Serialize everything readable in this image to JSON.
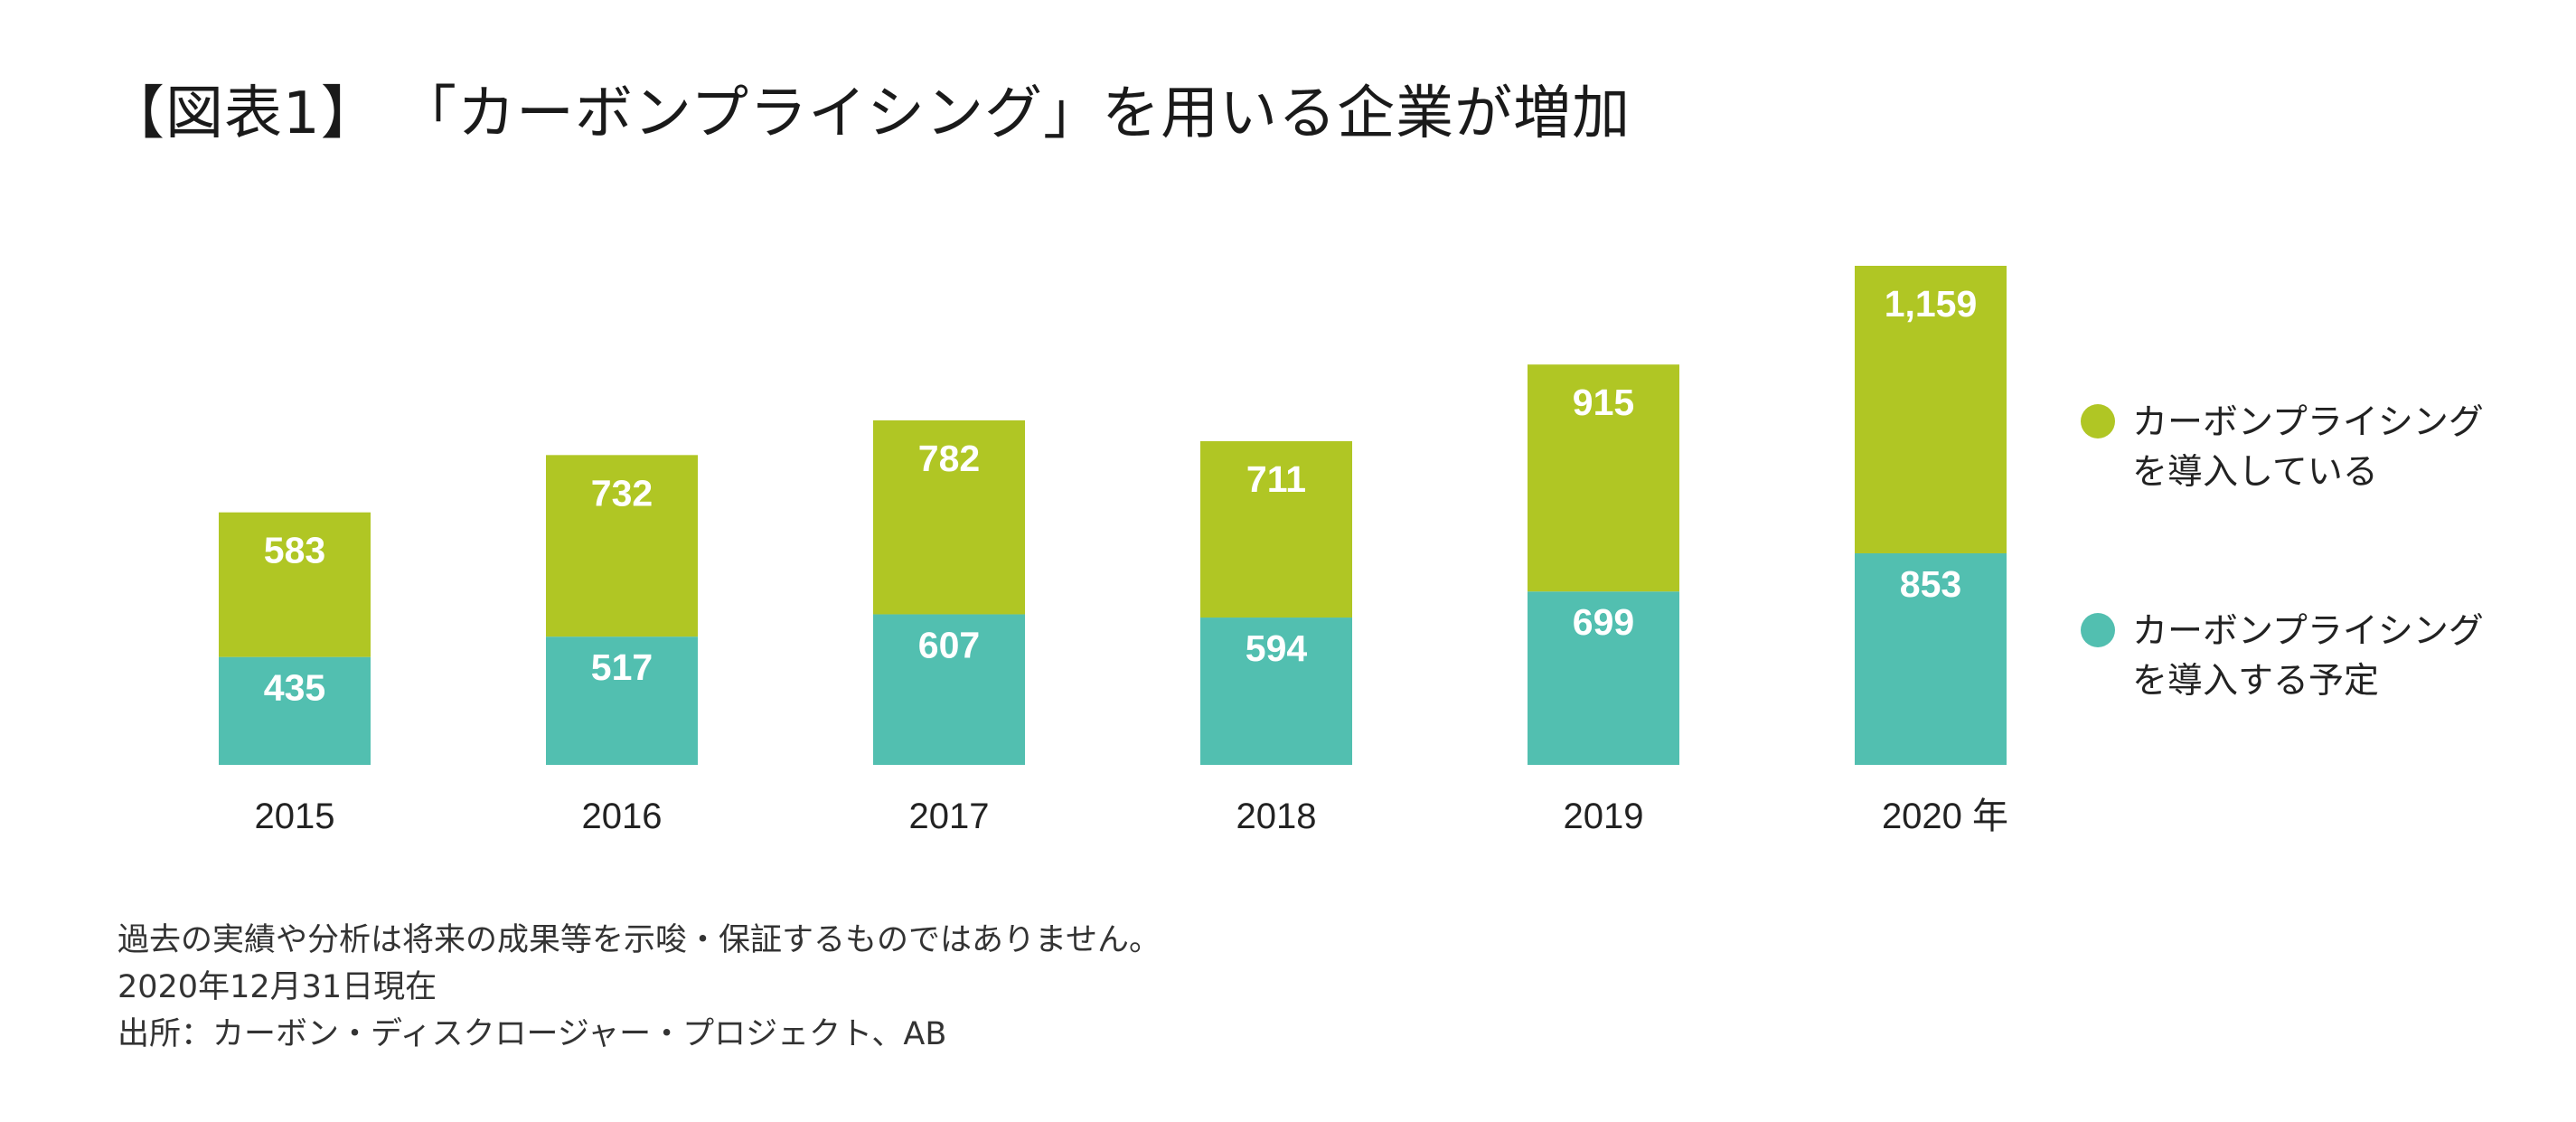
{
  "title": "【図表1】 「カーボンプライシング」を用いる企業が増加",
  "colors": {
    "implemented": "#b0c624",
    "planned": "#52bfb0",
    "value_label": "#ffffff",
    "text": "#222222"
  },
  "chart_data": {
    "type": "bar",
    "stacked": true,
    "title": "「カーボンプライシング」を用いる企業が増加",
    "categories": [
      "2015",
      "2016",
      "2017",
      "2018",
      "2019",
      "2020"
    ],
    "category_unit_suffix": "年",
    "series": [
      {
        "name": "カーボンプライシングを導入する予定",
        "legend_lines": [
          "カーボンプライシング",
          "を導入する予定"
        ],
        "color": "#52bfb0",
        "values": [
          435,
          517,
          607,
          594,
          699,
          853
        ]
      },
      {
        "name": "カーボンプライシングを導入している",
        "legend_lines": [
          "カーボンプライシング",
          "を導入している"
        ],
        "color": "#b0c624",
        "values": [
          583,
          732,
          782,
          711,
          915,
          1159
        ]
      }
    ],
    "value_labels": {
      "planned": [
        "435",
        "517",
        "607",
        "594",
        "699",
        "853"
      ],
      "implemented": [
        "583",
        "732",
        "782",
        "711",
        "915",
        "1,159"
      ]
    },
    "y_axis_visible": false,
    "grid": false,
    "legend_position": "right",
    "ylim": [
      0,
      2012
    ]
  },
  "notes": [
    "過去の実績や分析は将来の成果等を示唆・保証するものではありません。",
    "2020年12月31日現在",
    "出所：カーボン・ディスクロージャー・プロジェクト、AB"
  ]
}
